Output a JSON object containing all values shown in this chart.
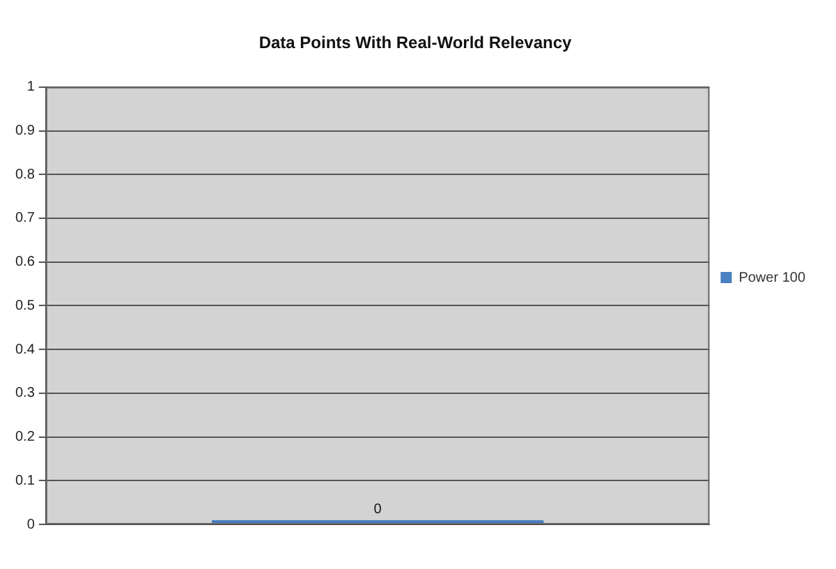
{
  "chart_data": {
    "type": "bar",
    "title": "Data Points With Real-World Relevancy",
    "categories": [
      null
    ],
    "series": [
      {
        "name": "Power 100",
        "color": "#4a7fc1",
        "values": [
          0
        ]
      }
    ],
    "ylim": [
      0,
      1
    ],
    "yticks": [
      0,
      0.1,
      0.2,
      0.3,
      0.4,
      0.5,
      0.6,
      0.7,
      0.8,
      0.9,
      1
    ],
    "grid": "y",
    "legend": "right",
    "data_labels": true
  }
}
